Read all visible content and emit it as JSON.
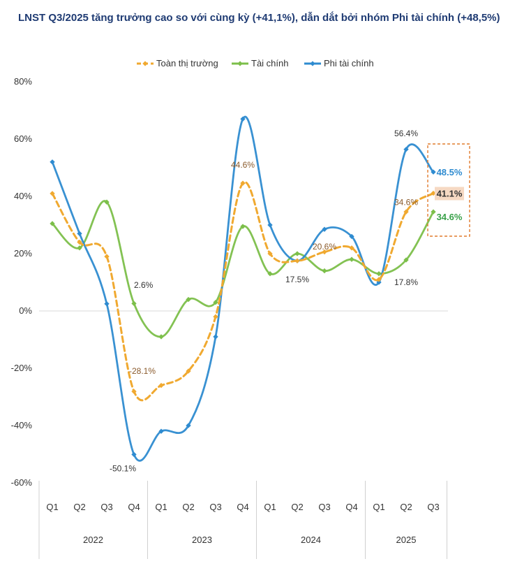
{
  "chart_data": {
    "type": "line",
    "title": "LNST Q3/2025 tăng trưởng cao so với cùng kỳ (+41,1%), dẫn dắt bởi nhóm Phi tài chính (+48,5%)",
    "xlabel": "",
    "ylabel": "",
    "ylim": [
      -60,
      80
    ],
    "yticks": [
      "80%",
      "60%",
      "40%",
      "20%",
      "0%",
      "-20%",
      "-40%",
      "-60%"
    ],
    "ytick_values": [
      80,
      60,
      40,
      20,
      0,
      -20,
      -40,
      -60
    ],
    "categories": [
      "Q1",
      "Q2",
      "Q3",
      "Q4",
      "Q1",
      "Q2",
      "Q3",
      "Q4",
      "Q1",
      "Q2",
      "Q3",
      "Q4",
      "Q1",
      "Q2",
      "Q3"
    ],
    "years": [
      {
        "label": "2022",
        "count": 4
      },
      {
        "label": "2023",
        "count": 4
      },
      {
        "label": "2024",
        "count": 4
      },
      {
        "label": "2025",
        "count": 3
      }
    ],
    "legend_position": "top-center",
    "grid": false,
    "series": [
      {
        "name": "Toàn thị trường",
        "color": "#f0a930",
        "dashed": true,
        "values": [
          41,
          24,
          19,
          -28.1,
          -26,
          -21,
          -2,
          44.6,
          20,
          17.5,
          20.6,
          22,
          11,
          34.6,
          41.1
        ]
      },
      {
        "name": "Tài chính",
        "color": "#7cbf4a",
        "dashed": false,
        "values": [
          30.5,
          22,
          38,
          2.6,
          -9,
          4,
          3,
          29.5,
          13,
          20,
          14,
          18,
          13,
          17.8,
          34.6
        ]
      },
      {
        "name": "Phi tài chính",
        "color": "#2e8bd0",
        "dashed": false,
        "values": [
          52,
          27,
          2.5,
          -50.1,
          -42,
          -40,
          -9,
          67,
          30,
          17.5,
          28.5,
          26,
          10,
          56.4,
          48.5
        ]
      }
    ],
    "annotations": [
      {
        "text": "2.6%",
        "x_index": 3,
        "y": 8,
        "color": "#333333",
        "anchor": "start",
        "dx": 0
      },
      {
        "text": "-28.1%",
        "x_index": 3,
        "y": -22,
        "color": "#8a5a2b",
        "anchor": "middle",
        "dx": 12
      },
      {
        "text": "-50.1%",
        "x_index": 3,
        "y": -56,
        "color": "#333333",
        "anchor": "middle",
        "dx": -16
      },
      {
        "text": "44.6%",
        "x_index": 7,
        "y": 50,
        "color": "#8a5a2b",
        "anchor": "middle",
        "dx": 0
      },
      {
        "text": "17.5%",
        "x_index": 9,
        "y": 10,
        "color": "#333333",
        "anchor": "middle",
        "dx": 0
      },
      {
        "text": "20.6%",
        "x_index": 10,
        "y": 21.5,
        "color": "#8a5a2b",
        "anchor": "middle",
        "dx": 0
      },
      {
        "text": "56.4%",
        "x_index": 13,
        "y": 61,
        "color": "#333333",
        "anchor": "middle",
        "dx": 0
      },
      {
        "text": "34.6%",
        "x_index": 13,
        "y": 37,
        "color": "#8a5a2b",
        "anchor": "middle",
        "dx": 0
      },
      {
        "text": "17.8%",
        "x_index": 13,
        "y": 9,
        "color": "#333333",
        "anchor": "middle",
        "dx": 0
      }
    ],
    "callouts": [
      {
        "text": "48.5%",
        "series": 2,
        "color": "#2e8bd0"
      },
      {
        "text": "41.1%",
        "series": 0,
        "color": "#333333",
        "highlight": "#f6d9c3"
      },
      {
        "text": "34.6%",
        "series": 1,
        "color": "#3aa14a"
      }
    ]
  }
}
